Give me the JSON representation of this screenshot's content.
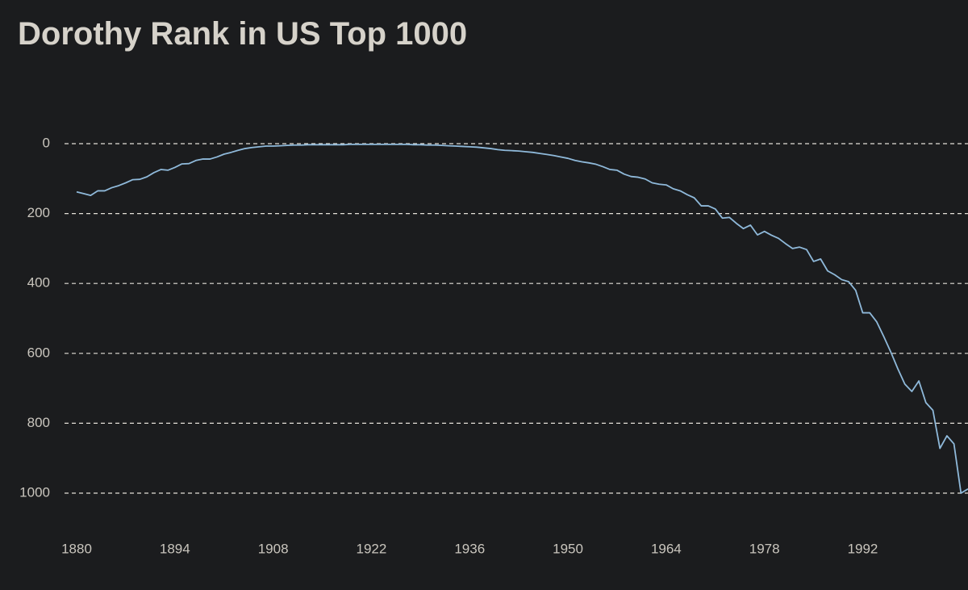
{
  "chart_data": {
    "type": "line",
    "title": "Dorothy Rank in US Top 1000",
    "x": [
      1880,
      1881,
      1882,
      1883,
      1884,
      1885,
      1886,
      1887,
      1888,
      1889,
      1890,
      1891,
      1892,
      1893,
      1894,
      1895,
      1896,
      1897,
      1898,
      1899,
      1900,
      1901,
      1902,
      1903,
      1904,
      1905,
      1906,
      1907,
      1908,
      1909,
      1910,
      1911,
      1912,
      1913,
      1914,
      1915,
      1916,
      1917,
      1918,
      1919,
      1920,
      1921,
      1922,
      1923,
      1924,
      1925,
      1926,
      1927,
      1928,
      1929,
      1930,
      1931,
      1932,
      1933,
      1934,
      1935,
      1936,
      1937,
      1938,
      1939,
      1940,
      1941,
      1942,
      1943,
      1944,
      1945,
      1946,
      1947,
      1948,
      1949,
      1950,
      1951,
      1952,
      1953,
      1954,
      1955,
      1956,
      1957,
      1958,
      1959,
      1960,
      1961,
      1962,
      1963,
      1964,
      1965,
      1966,
      1967,
      1968,
      1969,
      1970,
      1971,
      1972,
      1973,
      1974,
      1975,
      1976,
      1977,
      1978,
      1979,
      1980,
      1981,
      1982,
      1983,
      1984,
      1985,
      1986,
      1987,
      1988,
      1989,
      1990,
      1991,
      1992,
      1993,
      1994,
      1995,
      1996,
      1997,
      1998,
      1999,
      2000,
      2001,
      2002,
      2003,
      2004,
      2005,
      2006,
      2007
    ],
    "values": [
      138,
      143,
      148,
      135,
      135,
      126,
      120,
      112,
      103,
      102,
      95,
      83,
      74,
      76,
      68,
      58,
      57,
      48,
      44,
      44,
      38,
      30,
      25,
      19,
      14,
      11,
      9,
      7,
      7,
      6,
      5,
      4,
      4,
      3,
      3,
      3,
      3,
      3,
      3,
      2,
      2,
      2,
      2,
      2,
      2,
      2,
      2,
      2,
      3,
      3,
      4,
      4,
      5,
      6,
      7,
      8,
      9,
      10,
      12,
      14,
      17,
      19,
      20,
      21,
      23,
      25,
      28,
      31,
      34,
      38,
      42,
      48,
      52,
      55,
      59,
      66,
      74,
      76,
      87,
      94,
      96,
      101,
      112,
      116,
      118,
      129,
      135,
      146,
      155,
      178,
      178,
      187,
      213,
      211,
      228,
      243,
      233,
      261,
      251,
      262,
      271,
      286,
      300,
      296,
      303,
      337,
      330,
      364,
      375,
      389,
      395,
      420,
      484,
      484,
      510,
      552,
      596,
      644,
      688,
      709,
      679,
      741,
      763,
      872,
      836,
      859,
      1000,
      988
    ],
    "color": "#8fb9da",
    "xlim": [
      1880,
      2007
    ],
    "xticks": [
      1880,
      1894,
      1908,
      1922,
      1936,
      1950,
      1964,
      1978,
      1992
    ],
    "ylim": [
      0,
      1000
    ],
    "yticks": [
      0,
      200,
      400,
      600,
      800,
      1000
    ],
    "y_inverted": true,
    "grid": true
  }
}
